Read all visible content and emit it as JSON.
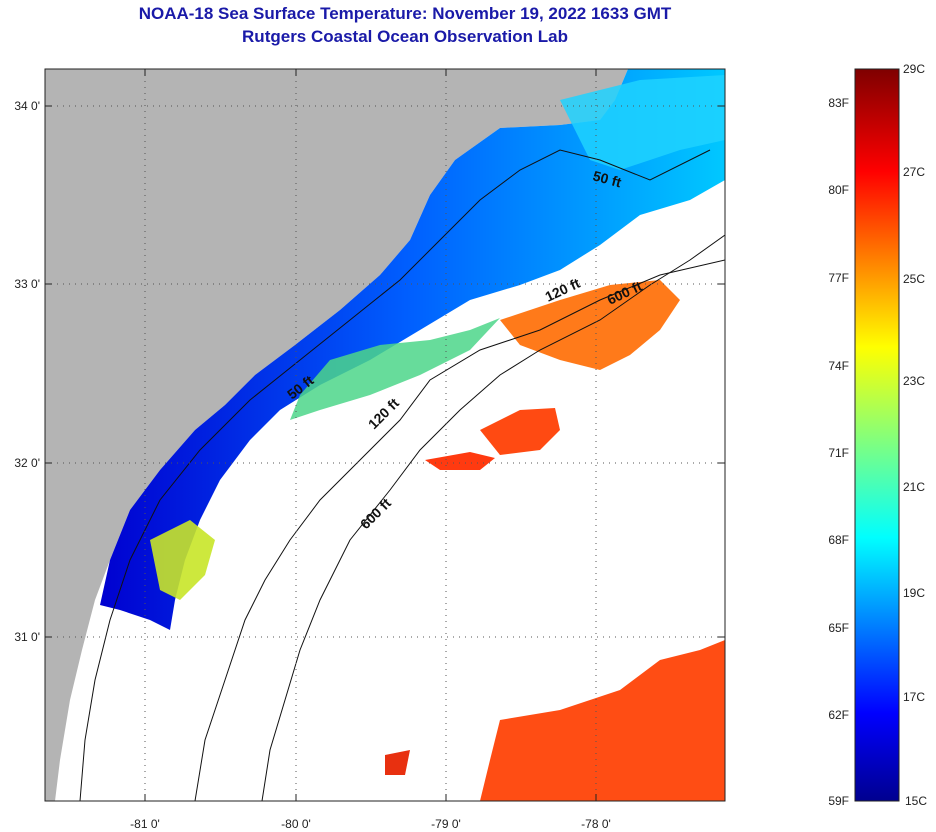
{
  "header": {
    "title": "NOAA-18 Sea Surface Temperature:  November 19, 2022 1633 GMT",
    "subtitle": "Rutgers Coastal Ocean Observation Lab"
  },
  "map": {
    "lon_ticks": [
      "-81 0'",
      "-80 0'",
      "-79 0'",
      "-78 0'"
    ],
    "lat_ticks": [
      "34 0'",
      "33 0'",
      "32 0'",
      "31 0'"
    ],
    "contour_labels": [
      "50 ft",
      "120 ft",
      "600 ft",
      "50 ft",
      "120 ft",
      "600 ft"
    ]
  },
  "colorbar": {
    "celsius": [
      "29C",
      "27C",
      "25C",
      "23C",
      "21C",
      "19C",
      "17C",
      "15C"
    ],
    "fahrenheit": [
      "83F",
      "80F",
      "77F",
      "74F",
      "71F",
      "68F",
      "65F",
      "62F",
      "59F"
    ]
  },
  "colors": {
    "land": "#b4b4b4",
    "title": "#1a1aa8"
  }
}
